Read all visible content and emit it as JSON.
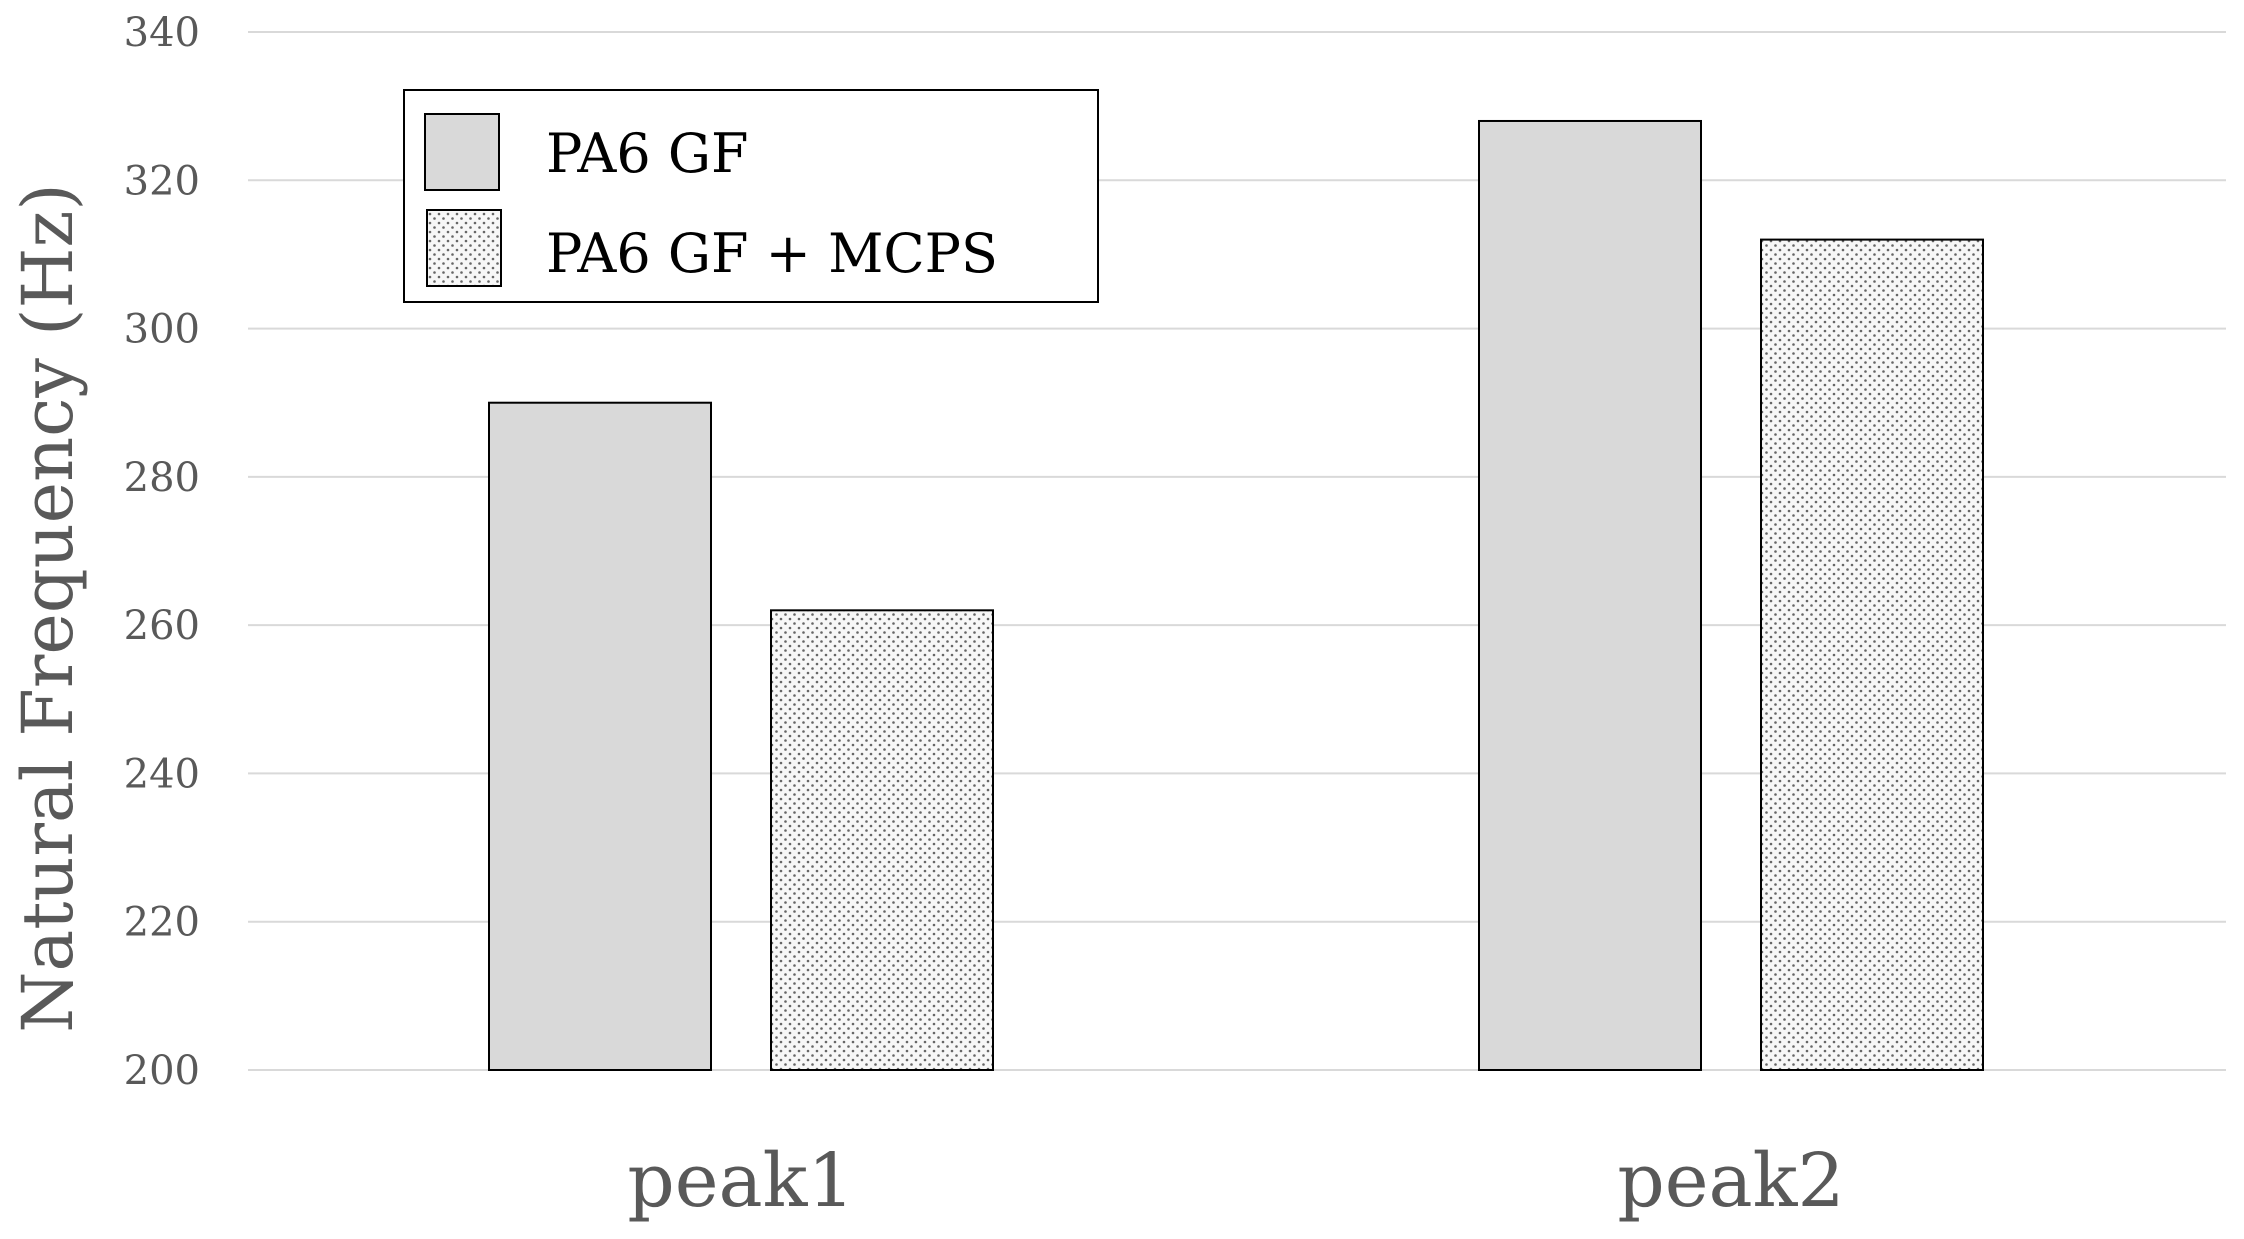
{
  "chart_data": {
    "type": "bar",
    "title": "",
    "xlabel": "",
    "ylabel": "Natural Frequency (Hz)",
    "categories": [
      "peak1",
      "peak2"
    ],
    "series": [
      {
        "name": "PA6 GF",
        "values": [
          290,
          328
        ],
        "color": "#d9d9d9",
        "pattern": "solid"
      },
      {
        "name": "PA6 GF + MCPS",
        "values": [
          262,
          312
        ],
        "color": "#f2f2f2",
        "pattern": "dotted"
      }
    ],
    "ylim": [
      200,
      340
    ],
    "yticks": [
      200,
      220,
      240,
      260,
      280,
      300,
      320,
      340
    ],
    "grid": true,
    "legend_position": "top-left"
  }
}
